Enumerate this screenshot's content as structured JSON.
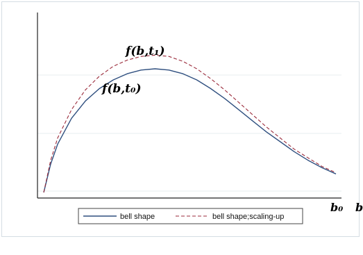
{
  "chart_data": {
    "type": "line",
    "title": "",
    "xlabel": "b",
    "ylabel": "",
    "xticks": [
      {
        "x": 0.42,
        "label": "b₀"
      }
    ],
    "grid": true,
    "legend_position": "bottom",
    "series": [
      {
        "name": "bell shape",
        "color": "#2f4f7f",
        "style": "solid",
        "x": [
          0,
          0.01,
          0.02,
          0.04,
          0.06,
          0.08,
          0.1,
          0.12,
          0.14,
          0.16,
          0.18,
          0.2,
          0.22,
          0.24,
          0.26,
          0.28,
          0.3,
          0.32,
          0.34,
          0.36,
          0.38,
          0.4,
          0.42
        ],
        "y": [
          0.0,
          0.23,
          0.39,
          0.6,
          0.74,
          0.84,
          0.91,
          0.96,
          0.99,
          1.0,
          0.99,
          0.96,
          0.91,
          0.84,
          0.76,
          0.67,
          0.58,
          0.49,
          0.41,
          0.33,
          0.26,
          0.2,
          0.15
        ]
      },
      {
        "name": "bell shape;scaling-up",
        "color": "#9b2b3b",
        "style": "dashed",
        "x": [
          0,
          0.01,
          0.02,
          0.04,
          0.06,
          0.08,
          0.1,
          0.12,
          0.14,
          0.16,
          0.18,
          0.2,
          0.22,
          0.24,
          0.26,
          0.28,
          0.3,
          0.32,
          0.34,
          0.36,
          0.38,
          0.4,
          0.42
        ],
        "y": [
          0.0,
          0.26,
          0.44,
          0.67,
          0.83,
          0.94,
          1.02,
          1.07,
          1.1,
          1.11,
          1.1,
          1.06,
          1.0,
          0.92,
          0.83,
          0.73,
          0.63,
          0.53,
          0.44,
          0.35,
          0.28,
          0.21,
          0.16
        ]
      }
    ],
    "annotations": [
      {
        "text": "f(b,t₁)",
        "near_series": 1,
        "position": "above-peak"
      },
      {
        "text": "f(b,t₀)",
        "near_series": 0,
        "position": "below-peak"
      }
    ]
  }
}
